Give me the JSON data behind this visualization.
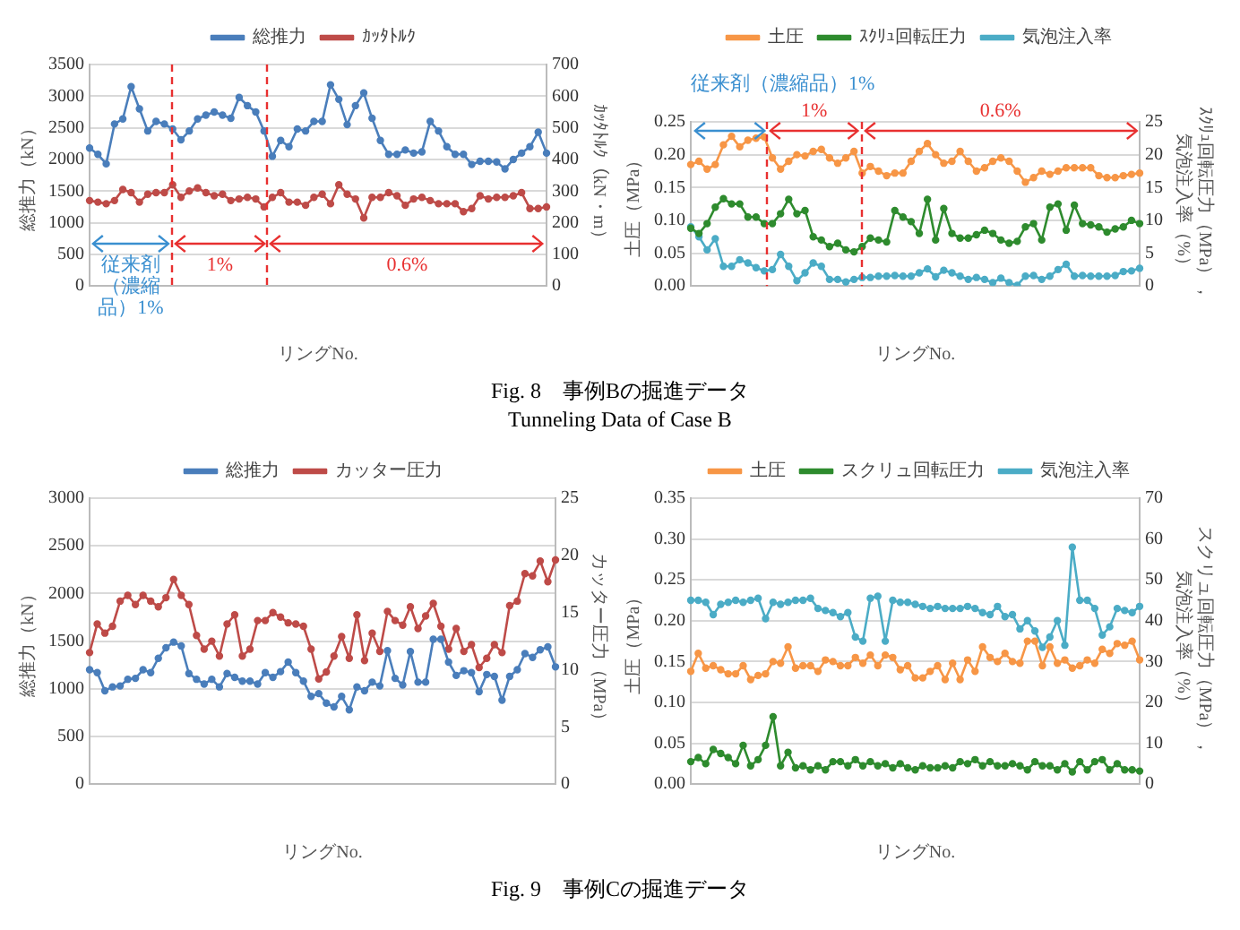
{
  "chart_data": [
    {
      "type": "line",
      "xlabel": "リングNo.",
      "ylabel": "総推力（kN）",
      "y2label": "ｶｯﾀﾄﾙｸ（kN・m）",
      "legend": "top",
      "grid": "y",
      "marker": "circle",
      "line_style": "solid",
      "annotations": [
        "従来剤（濃縮品）1%",
        "1%",
        "0.6%",
        "Fig. 8　事例Bの掘進データ",
        "Tunneling Data of Case B"
      ],
      "categories": [
        null,
        null,
        null,
        null,
        null,
        null,
        null,
        null,
        null,
        null,
        null,
        null,
        null,
        null,
        null,
        null,
        null,
        null,
        null,
        null,
        null,
        null,
        null,
        null,
        null,
        null,
        null,
        null,
        null,
        null,
        null,
        null,
        null,
        null,
        null,
        null,
        null,
        null,
        null,
        null,
        null,
        null,
        null,
        null,
        null,
        null,
        null,
        null,
        null,
        null,
        null,
        null,
        null,
        null,
        null,
        null
      ],
      "ylim": [
        0,
        3500
      ],
      "yticks": [
        0,
        500,
        1000,
        1500,
        2000,
        2500,
        3000,
        3500
      ],
      "y2lim": [
        0,
        700
      ],
      "y2ticks": [
        0,
        100,
        200,
        300,
        400,
        500,
        600,
        700
      ],
      "series": [
        {
          "name": "総推力",
          "color": "#4a7ebb",
          "values": [
            2180,
            2080,
            1930,
            2560,
            2640,
            3150,
            2800,
            2450,
            2600,
            2560,
            2480,
            2310,
            2450,
            2640,
            2700,
            2750,
            2700,
            2650,
            2980,
            2850,
            2750,
            2450,
            2050,
            2300,
            2200,
            2480,
            2450,
            2600,
            2600,
            3180,
            2950,
            2550,
            2850,
            3050,
            2650,
            2300,
            2080,
            2080,
            2150,
            2100,
            2120,
            2600,
            2450,
            2200,
            2080,
            2080,
            1920,
            1970,
            1970,
            1960,
            1850,
            2000,
            2100,
            2200,
            2430,
            2100
          ]
        },
        {
          "name": "ｶｯﾀﾄﾙｸ",
          "color": "#be4b48",
          "axis": "y2",
          "values": [
            270,
            265,
            260,
            270,
            305,
            295,
            265,
            290,
            295,
            295,
            320,
            280,
            300,
            310,
            295,
            285,
            290,
            270,
            275,
            280,
            275,
            250,
            280,
            295,
            265,
            265,
            255,
            280,
            290,
            260,
            320,
            290,
            275,
            215,
            280,
            280,
            295,
            285,
            255,
            275,
            280,
            270,
            260,
            260,
            260,
            235,
            245,
            285,
            275,
            280,
            280,
            285,
            295,
            245,
            245,
            250
          ]
        }
      ]
    },
    {
      "type": "line",
      "xlabel": "リングNo.",
      "ylabel": "土圧（MPa）",
      "y2label": "ｽｸﾘｭ回転圧力（MPa），気泡注入率（%）",
      "legend": "top",
      "grid": "y",
      "marker": "circle",
      "line_style": "solid",
      "categories": [
        null,
        null,
        null,
        null,
        null,
        null,
        null,
        null,
        null,
        null,
        null,
        null,
        null,
        null,
        null,
        null,
        null,
        null,
        null,
        null,
        null,
        null,
        null,
        null,
        null,
        null,
        null,
        null,
        null,
        null,
        null,
        null,
        null,
        null,
        null,
        null,
        null,
        null,
        null,
        null,
        null,
        null,
        null,
        null,
        null,
        null,
        null,
        null,
        null,
        null,
        null,
        null,
        null,
        null,
        null,
        null
      ],
      "ylim": [
        0,
        0.25
      ],
      "yticks": [
        {
          "value": 0,
          "label": "0.00"
        },
        0.05,
        {
          "value": 0.1,
          "label": "0.10"
        },
        0.15,
        {
          "value": 0.2,
          "label": "0.20"
        },
        0.25
      ],
      "y2lim": [
        0,
        25
      ],
      "y2ticks": [
        0,
        5,
        10,
        15,
        20,
        25
      ],
      "annotations": [
        "従来剤（濃縮品）1%",
        "1%",
        "0.6%"
      ],
      "series": [
        {
          "name": "土圧",
          "color": "#f79646",
          "values": [
            0.185,
            0.19,
            0.178,
            0.185,
            0.215,
            0.228,
            0.212,
            0.222,
            0.225,
            0.227,
            0.195,
            0.178,
            0.19,
            0.2,
            0.198,
            0.205,
            0.208,
            0.195,
            0.187,
            0.195,
            0.205,
            0.172,
            0.182,
            0.175,
            0.168,
            0.172,
            0.172,
            0.19,
            0.205,
            0.217,
            0.2,
            0.187,
            0.19,
            0.205,
            0.19,
            0.175,
            0.18,
            0.19,
            0.195,
            0.19,
            0.175,
            0.158,
            0.165,
            0.175,
            0.17,
            0.175,
            0.18,
            0.18,
            0.18,
            0.18,
            0.168,
            0.165,
            0.165,
            0.168,
            0.17,
            0.172
          ]
        },
        {
          "name": "ｽｸﾘｭ回転圧力",
          "color": "#2e8b2e",
          "axis": "y2",
          "values": [
            8.8,
            8,
            9.5,
            12,
            13.3,
            12.5,
            12.5,
            10.5,
            10.5,
            9.5,
            9.5,
            11,
            13.2,
            11,
            11.5,
            7.5,
            7,
            6,
            6.5,
            5.5,
            5.2,
            6,
            7.3,
            7,
            6.7,
            11.5,
            10.5,
            9.8,
            8,
            13.2,
            7,
            11.8,
            8,
            7.3,
            7.3,
            7.8,
            8.5,
            8,
            7,
            6.5,
            6.8,
            9,
            9.5,
            7,
            12,
            12.5,
            8.5,
            12.3,
            9.5,
            9.3,
            9,
            8.2,
            8.7,
            9,
            10,
            9.5
          ]
        },
        {
          "name": "気泡注入率",
          "color": "#4bacc6",
          "axis": "y2",
          "values": [
            9,
            7.5,
            5.5,
            7.2,
            3,
            3,
            4,
            3.5,
            2.8,
            2.3,
            2.5,
            4.8,
            3,
            0.8,
            2,
            3.5,
            3,
            1,
            1,
            0.6,
            1,
            1.3,
            1.3,
            1.5,
            1.5,
            1.6,
            1.5,
            1.5,
            2,
            2.6,
            1.4,
            2.4,
            2,
            1.5,
            1,
            1.3,
            1,
            0.5,
            1.2,
            0.5,
            0.1,
            1.5,
            1.6,
            1,
            1.5,
            2.5,
            3.3,
            1.5,
            1.6,
            1.5,
            1.5,
            1.5,
            1.6,
            2.2,
            2.3,
            2.7
          ]
        }
      ]
    },
    {
      "type": "line",
      "xlabel": "リングNo.",
      "ylabel": "総推力（kN）",
      "y2label": "カッター圧力（MPa）",
      "legend": "top",
      "grid": "y",
      "marker": "circle",
      "line_style": "solid",
      "annotations": [
        "Fig. 9　事例Cの掘進データ"
      ],
      "categories": [
        null,
        null,
        null,
        null,
        null,
        null,
        null,
        null,
        null,
        null,
        null,
        null,
        null,
        null,
        null,
        null,
        null,
        null,
        null,
        null,
        null,
        null,
        null,
        null,
        null,
        null,
        null,
        null,
        null,
        null,
        null,
        null,
        null,
        null,
        null,
        null,
        null,
        null,
        null,
        null,
        null,
        null,
        null,
        null,
        null,
        null,
        null,
        null,
        null,
        null,
        null,
        null,
        null,
        null,
        null,
        null,
        null,
        null,
        null,
        null,
        null,
        null
      ],
      "ylim": [
        0,
        3000
      ],
      "yticks": [
        0,
        500,
        1000,
        1500,
        2000,
        2500,
        3000
      ],
      "y2lim": [
        0,
        25
      ],
      "y2ticks": [
        0,
        5,
        10,
        15,
        20,
        25
      ],
      "series": [
        {
          "name": "総推力",
          "color": "#4a7ebb",
          "values": [
            1200,
            1170,
            980,
            1020,
            1030,
            1100,
            1110,
            1200,
            1170,
            1320,
            1430,
            1490,
            1450,
            1160,
            1100,
            1050,
            1100,
            1020,
            1160,
            1120,
            1080,
            1080,
            1050,
            1170,
            1120,
            1180,
            1280,
            1170,
            1080,
            920,
            950,
            850,
            810,
            920,
            780,
            1020,
            980,
            1070,
            1030,
            1400,
            1110,
            1040,
            1390,
            1070,
            1070,
            1520,
            1520,
            1280,
            1140,
            1190,
            1170,
            970,
            1150,
            1130,
            880,
            1130,
            1200,
            1370,
            1330,
            1410,
            1440,
            1230
          ]
        },
        {
          "name": "カッター圧力",
          "color": "#be4b48",
          "axis": "y2",
          "values": [
            11.5,
            14,
            13.2,
            13.8,
            16,
            16.5,
            15.7,
            16.5,
            16,
            15.5,
            16.3,
            17.9,
            16.5,
            15.7,
            13,
            11.8,
            12.5,
            11.2,
            14,
            14.8,
            11.2,
            11.8,
            14.3,
            14.3,
            15,
            14.6,
            14.1,
            14,
            13.8,
            11.8,
            9.2,
            9.8,
            11.2,
            12.9,
            11,
            14.8,
            10.8,
            13.2,
            11.6,
            15.1,
            14.3,
            13.9,
            15.5,
            13.6,
            14.7,
            15.8,
            13.8,
            11.8,
            13.6,
            11.6,
            12.2,
            10.2,
            11,
            12.2,
            11.5,
            15.6,
            16,
            18.4,
            18.2,
            19.5,
            17.7,
            19.6
          ]
        }
      ]
    },
    {
      "type": "line",
      "xlabel": "リングNo.",
      "ylabel": "土圧（MPa）",
      "y2label": "スクリュ回転圧力（MPa），気泡注入率（%）",
      "legend": "top",
      "grid": "y",
      "marker": "circle",
      "line_style": "solid",
      "categories": [
        null,
        null,
        null,
        null,
        null,
        null,
        null,
        null,
        null,
        null,
        null,
        null,
        null,
        null,
        null,
        null,
        null,
        null,
        null,
        null,
        null,
        null,
        null,
        null,
        null,
        null,
        null,
        null,
        null,
        null,
        null,
        null,
        null,
        null,
        null,
        null,
        null,
        null,
        null,
        null,
        null,
        null,
        null,
        null,
        null,
        null,
        null,
        null,
        null,
        null,
        null,
        null,
        null,
        null,
        null,
        null,
        null,
        null,
        null,
        null,
        null
      ],
      "ylim": [
        0,
        0.35
      ],
      "yticks": [
        {
          "value": 0,
          "label": "0.00"
        },
        0.05,
        {
          "value": 0.1,
          "label": "0.10"
        },
        0.15,
        {
          "value": 0.2,
          "label": "0.20"
        },
        0.25,
        {
          "value": 0.3,
          "label": "0.30"
        },
        0.35
      ],
      "y2lim": [
        0,
        70
      ],
      "y2ticks": [
        0,
        10,
        20,
        30,
        40,
        50,
        60,
        70
      ],
      "series": [
        {
          "name": "土圧",
          "color": "#f79646",
          "values": [
            0.138,
            0.16,
            0.142,
            0.145,
            0.14,
            0.135,
            0.135,
            0.145,
            0.128,
            0.133,
            0.135,
            0.15,
            0.148,
            0.168,
            0.142,
            0.145,
            0.145,
            0.138,
            0.152,
            0.15,
            0.145,
            0.145,
            0.155,
            0.148,
            0.158,
            0.145,
            0.158,
            0.155,
            0.14,
            0.145,
            0.13,
            0.13,
            0.138,
            0.145,
            0.128,
            0.148,
            0.128,
            0.152,
            0.138,
            0.168,
            0.155,
            0.15,
            0.16,
            0.15,
            0.148,
            0.175,
            0.175,
            0.145,
            0.168,
            0.148,
            0.152,
            0.142,
            0.145,
            0.152,
            0.148,
            0.165,
            0.16,
            0.172,
            0.17,
            0.175,
            0.152
          ]
        },
        {
          "name": "スクリュ回転圧力",
          "color": "#2e8b2e",
          "axis": "y2",
          "values": [
            5.5,
            6.5,
            5,
            8.5,
            7.5,
            6.5,
            5,
            9.5,
            4.5,
            6,
            9.5,
            16.5,
            4.5,
            7.8,
            4,
            4.5,
            3.5,
            4.5,
            3.5,
            5.5,
            5.5,
            4.5,
            6,
            4.5,
            5.5,
            4.5,
            5,
            4,
            5,
            4,
            3.5,
            4.5,
            4,
            4,
            4.5,
            4,
            5.5,
            5,
            6,
            4.5,
            5.5,
            4.5,
            4.5,
            5,
            4.5,
            3.5,
            5.5,
            4.5,
            4.5,
            3.5,
            5,
            3,
            5.5,
            3.5,
            5.5,
            6,
            3.5,
            5,
            3.5,
            3.5,
            3.2
          ]
        },
        {
          "name": "気泡注入率",
          "color": "#4bacc6",
          "axis": "y2",
          "values": [
            45,
            45,
            44.5,
            41.5,
            44,
            44.5,
            45,
            44.5,
            45,
            45.5,
            40.5,
            44.5,
            44,
            44.5,
            45,
            45,
            45.5,
            43,
            42.5,
            42,
            41,
            42,
            36,
            35,
            45.5,
            46,
            35,
            45,
            44.5,
            44.5,
            44,
            43.5,
            43,
            43.5,
            43,
            43,
            43,
            43.5,
            43,
            42,
            41.5,
            43.5,
            41,
            41.5,
            38,
            40,
            37.5,
            33.5,
            36,
            40,
            34,
            58,
            45,
            45,
            43,
            36.5,
            38.5,
            43,
            42.5,
            42,
            43.5
          ]
        }
      ]
    }
  ]
}
